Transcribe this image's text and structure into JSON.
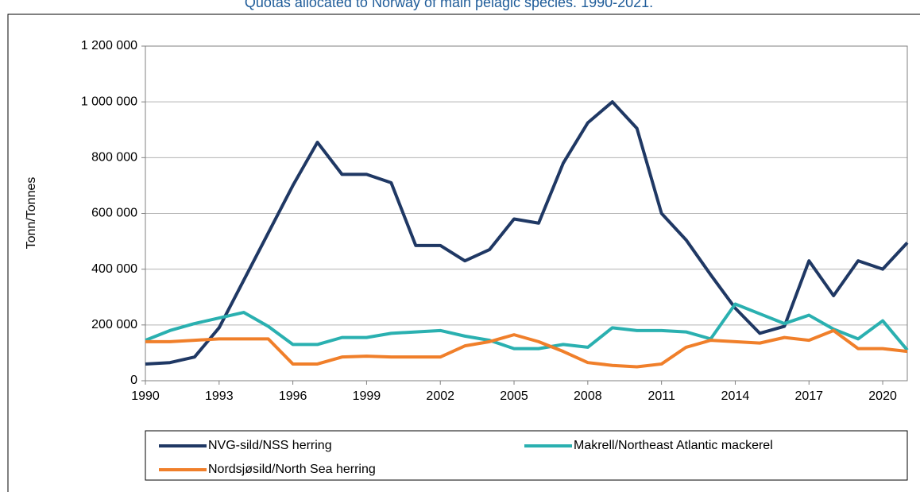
{
  "chart_data": {
    "type": "line",
    "title": "Quotas allocated to Norway of main pelagic species. 1990-2021.",
    "y_label": "Tonn/Tonnes",
    "x": [
      1990,
      1991,
      1992,
      1993,
      1994,
      1995,
      1996,
      1997,
      1998,
      1999,
      2000,
      2001,
      2002,
      2003,
      2004,
      2005,
      2006,
      2007,
      2008,
      2009,
      2010,
      2011,
      2012,
      2013,
      2014,
      2015,
      2016,
      2017,
      2018,
      2019,
      2020,
      2021
    ],
    "xlim": [
      1990,
      2021
    ],
    "xticks": [
      1990,
      1993,
      1996,
      1999,
      2002,
      2005,
      2008,
      2011,
      2014,
      2017,
      2020
    ],
    "ylim": [
      0,
      1200000
    ],
    "yticks": [
      0,
      {
        "value": 200000,
        "label": "200 000"
      },
      {
        "value": 400000,
        "label": "400 000"
      },
      {
        "value": 600000,
        "label": "600 000"
      },
      {
        "value": 800000,
        "label": "800 000"
      },
      {
        "value": 1000000,
        "label": "1 000 000"
      },
      {
        "value": 1200000,
        "label": "1 200 000"
      }
    ],
    "grid": true,
    "legend": "bottom",
    "series": [
      {
        "name": "NVG-sild/NSS herring",
        "color": "#1f3864",
        "values": [
          60000,
          65000,
          85000,
          190000,
          360000,
          530000,
          700000,
          855000,
          740000,
          740000,
          710000,
          485000,
          485000,
          430000,
          470000,
          580000,
          565000,
          780000,
          925000,
          1000000,
          905000,
          600000,
          505000,
          380000,
          260000,
          170000,
          195000,
          430000,
          305000,
          430000,
          400000,
          495000
        ]
      },
      {
        "name": "Makrell/Northeast Atlantic mackerel",
        "color": "#2ab0b0",
        "values": [
          145000,
          180000,
          205000,
          225000,
          245000,
          195000,
          130000,
          130000,
          155000,
          155000,
          170000,
          175000,
          180000,
          160000,
          145000,
          115000,
          115000,
          130000,
          120000,
          190000,
          180000,
          180000,
          175000,
          150000,
          275000,
          240000,
          205000,
          235000,
          185000,
          150000,
          215000,
          110000
        ]
      },
      {
        "name": "Nordsjøsild/North Sea herring",
        "color": "#f07f2a",
        "values": [
          140000,
          140000,
          145000,
          150000,
          150000,
          150000,
          60000,
          60000,
          85000,
          88000,
          85000,
          85000,
          85000,
          125000,
          140000,
          165000,
          140000,
          105000,
          65000,
          55000,
          50000,
          60000,
          120000,
          145000,
          140000,
          135000,
          155000,
          145000,
          180000,
          115000,
          115000,
          105000
        ]
      }
    ]
  }
}
